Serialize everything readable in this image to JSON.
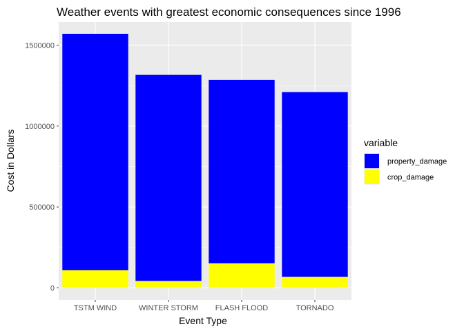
{
  "chart_data": {
    "type": "bar",
    "stacked": true,
    "title": "Weather events with greatest economic consequences since 1996",
    "xlabel": "Event Type",
    "ylabel": "Cost in Dollars",
    "categories": [
      "TSTM WIND",
      "WINTER STORM",
      "FLASH FLOOD",
      "TORNADO"
    ],
    "series": [
      {
        "name": "crop_damage",
        "color": "#ffff00",
        "values": [
          109000,
          43000,
          152000,
          68000
        ]
      },
      {
        "name": "property_damage",
        "color": "#0000ff",
        "values": [
          1461000,
          1273000,
          1133000,
          1142000
        ]
      }
    ],
    "ylim": [
      0,
      1570000
    ],
    "yticks": [
      0,
      500000,
      1000000,
      1500000
    ],
    "ytick_labels": [
      "0",
      "500000",
      "1000000",
      "1500000"
    ],
    "grid": true,
    "legend": {
      "title": "variable",
      "placement": "right",
      "entries": [
        {
          "name": "property_damage",
          "color": "#0000ff"
        },
        {
          "name": "crop_damage",
          "color": "#ffff00"
        }
      ]
    }
  }
}
